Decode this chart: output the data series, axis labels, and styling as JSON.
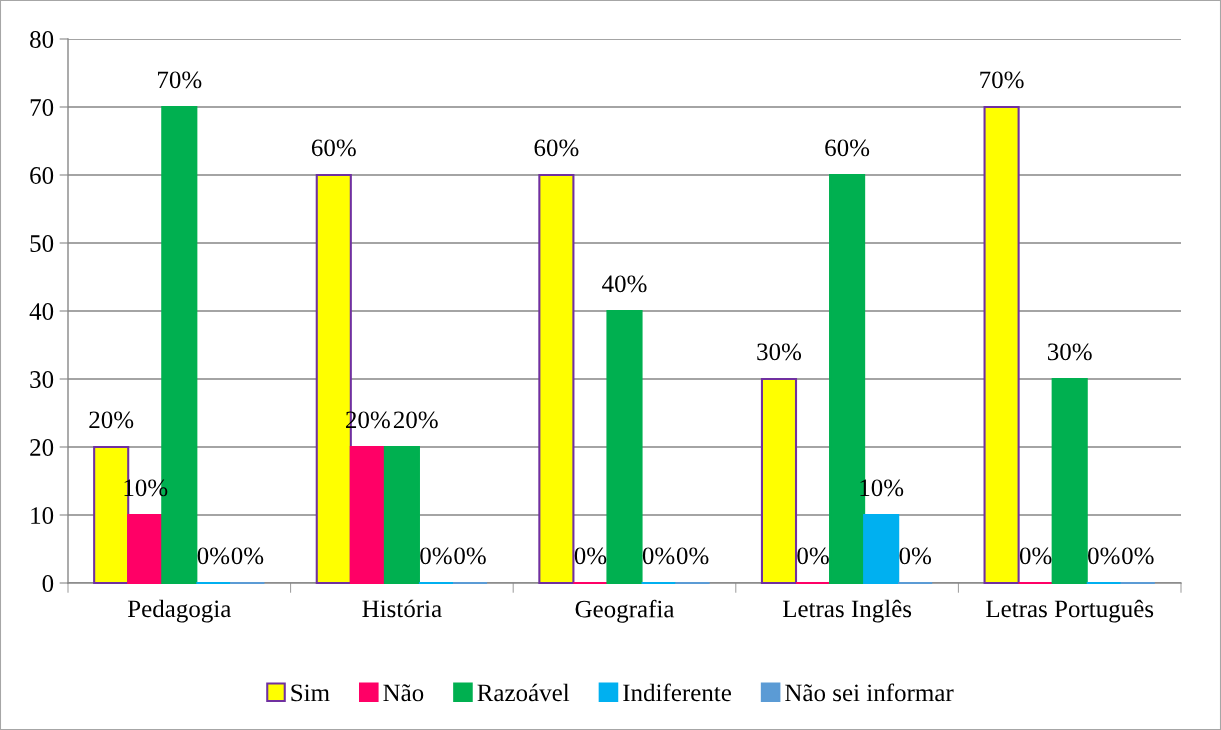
{
  "chart_data": {
    "type": "bar",
    "categories": [
      "Pedagogia",
      "História",
      "Geografia",
      "Letras Inglês",
      "Letras Português"
    ],
    "series": [
      {
        "name": "Sim",
        "color": "#ffff00",
        "values": [
          20,
          60,
          60,
          30,
          70
        ],
        "value_labels": [
          "20%",
          "60%",
          "60%",
          "30%",
          "70%"
        ]
      },
      {
        "name": "Não",
        "color": "#ff0066",
        "values": [
          10,
          20,
          0,
          0,
          0
        ],
        "value_labels": [
          "10%",
          "20%",
          "0%",
          "0%",
          "0%"
        ]
      },
      {
        "name": "Razoável",
        "color": "#00b050",
        "values": [
          70,
          20,
          40,
          60,
          30
        ],
        "value_labels": [
          "70%",
          "20%",
          "40%",
          "60%",
          "30%"
        ]
      },
      {
        "name": "Indiferente",
        "color": "#00b0f0",
        "values": [
          0,
          0,
          0,
          10,
          0
        ],
        "value_labels": [
          "0%",
          "0%",
          "0%",
          "10%",
          "0%"
        ]
      },
      {
        "name": "Não sei informar",
        "color": "#5b9bd5",
        "values": [
          0,
          0,
          0,
          0,
          0
        ],
        "value_labels": [
          "0%",
          "0%",
          "0%",
          "0%",
          "0%"
        ]
      }
    ],
    "ylim": [
      0,
      80
    ],
    "yticks": [
      0,
      10,
      20,
      30,
      40,
      50,
      60,
      70,
      80
    ],
    "grid": "y",
    "legend": "bottom"
  }
}
